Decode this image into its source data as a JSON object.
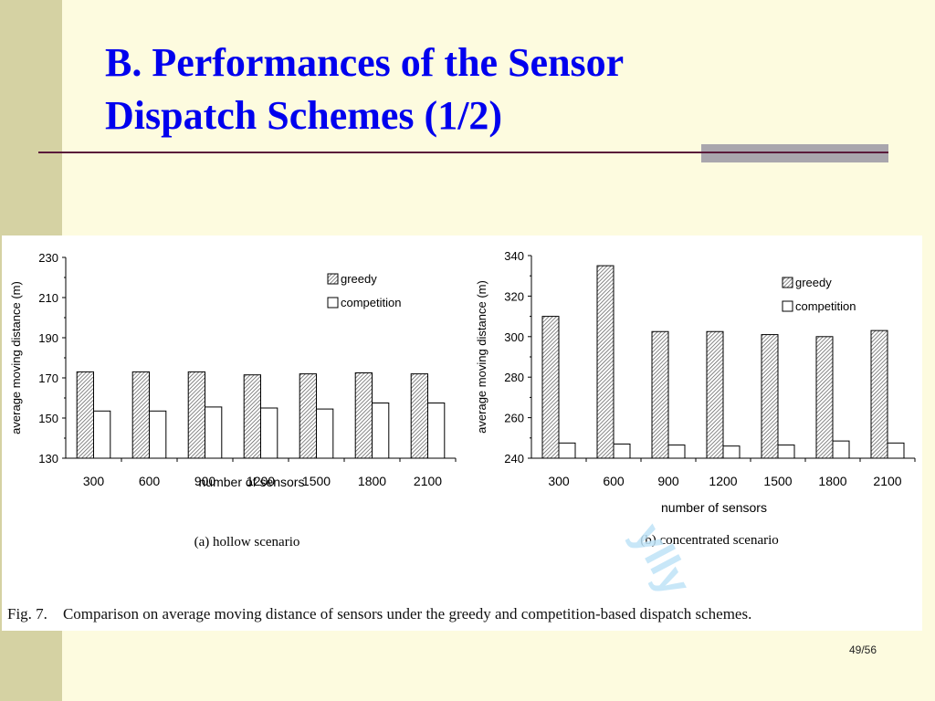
{
  "slide": {
    "title_line1": "B. Performances of the Sensor",
    "title_line2": "Dispatch Schemes (1/2)",
    "page_number": "49/56",
    "caption_label": "Fig. 7.",
    "caption_text": "Comparison on average moving distance of sensors under the greedy and competition-based dispatch schemes.",
    "watermark": "ylly",
    "colors": {
      "title": "#0000ee",
      "background": "#fdfbdf",
      "band": "#d5d2a3"
    }
  },
  "chart_data": [
    {
      "type": "bar",
      "subtitle": "(a) hollow scenario",
      "xlabel": "number of sensors",
      "ylabel": "average moving distance (m)",
      "categories": [
        "300",
        "600",
        "900",
        "1200",
        "1500",
        "1800",
        "2100"
      ],
      "ylim": [
        130,
        230
      ],
      "yticks": [
        130,
        150,
        170,
        190,
        210,
        230
      ],
      "legend_position": "top-right",
      "series": [
        {
          "name": "greedy",
          "values": [
            173,
            173,
            173,
            171.5,
            172,
            172.5,
            172
          ]
        },
        {
          "name": "competition",
          "values": [
            153.5,
            153.5,
            155.5,
            155,
            154.5,
            157.5,
            157.5
          ]
        }
      ]
    },
    {
      "type": "bar",
      "subtitle": "(b) concentrated scenario",
      "xlabel": "number of sensors",
      "ylabel": "average moving distance (m)",
      "categories": [
        "300",
        "600",
        "900",
        "1200",
        "1500",
        "1800",
        "2100"
      ],
      "ylim": [
        240,
        340
      ],
      "yticks": [
        240,
        260,
        280,
        300,
        320,
        340
      ],
      "legend_position": "top-right",
      "series": [
        {
          "name": "greedy",
          "values": [
            310,
            335,
            302.5,
            302.5,
            301,
            300,
            303
          ]
        },
        {
          "name": "competition",
          "values": [
            247.5,
            247,
            246.5,
            246,
            246.5,
            248.5,
            247.5
          ]
        }
      ]
    }
  ]
}
